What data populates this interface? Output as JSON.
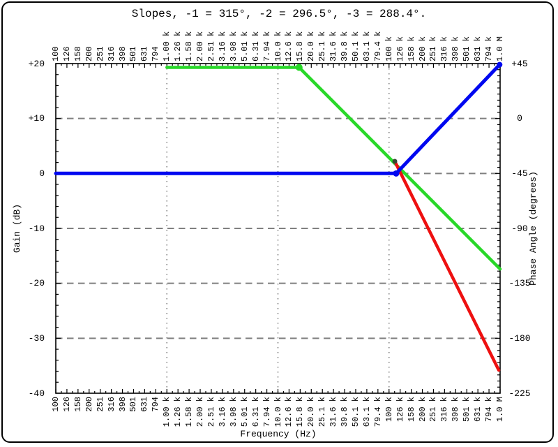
{
  "figure": {
    "background": "#ffffff",
    "border_color": "#000000"
  },
  "chart_data": {
    "type": "line",
    "title": "Slopes, -1 = 315°, -2 = 296.5°, -3 = 288.4°.",
    "xlabel": "Frequency (Hz)",
    "ylabel_left": "Gain (dB)",
    "ylabel_right": "Phase Angle (degrees)",
    "x_scale": "log",
    "x_range_hz": [
      100,
      1000000
    ],
    "y_left_range_db": [
      -40,
      20
    ],
    "y_right_range_deg": [
      -225,
      45
    ],
    "grid": {
      "v_dotted_lines_hz": [
        1000,
        10000,
        100000
      ],
      "h_dashed_lines_db": [
        10,
        0,
        -10,
        -20,
        -30
      ]
    },
    "x_tick_labels": [
      "100",
      "126",
      "158",
      "200",
      "251",
      "316",
      "398",
      "501",
      "631",
      "794",
      "1.00 k",
      "1.26 k",
      "1.58 k",
      "2.00 k",
      "2.51 k",
      "3.16 k",
      "3.98 k",
      "5.01 k",
      "6.31 k",
      "7.94 k",
      "10.0 k",
      "12.6 k",
      "15.8 k",
      "20.0 k",
      "25.1 k",
      "31.6 k",
      "39.8 k",
      "50.1 k",
      "63.1 k",
      "79.4 k",
      "100 k",
      "126 k",
      "158 k",
      "200 k",
      "251 k",
      "316 k",
      "398 k",
      "501 k",
      "631 k",
      "794 k",
      "1.0 M"
    ],
    "y_left_tick_labels": [
      "+20",
      "+10",
      "0",
      "-10",
      "-20",
      "-30",
      "-40"
    ],
    "y_left_tick_values": [
      20,
      10,
      0,
      -10,
      -20,
      -30,
      -40
    ],
    "y_left_minor_step_db": 2,
    "y_right_tick_labels": [
      "+45",
      "0",
      "-45",
      "-90",
      "-135",
      "-180",
      "-225"
    ],
    "y_right_tick_values": [
      45,
      0,
      -45,
      -90,
      -135,
      -180,
      -225
    ],
    "y_right_minor_step_deg": 5,
    "legend": "none",
    "series": [
      {
        "name": "green-slope-minus-1",
        "color": "#28d828",
        "width": 4.5,
        "points_hz_db": [
          [
            1000,
            19.3
          ],
          [
            15500,
            19.3
          ],
          [
            1000000,
            -17.4
          ]
        ]
      },
      {
        "name": "red-slope-minus-2",
        "color": "#ee1010",
        "width": 4.5,
        "points_hz_db": [
          [
            112700,
            2.2
          ],
          [
            973000,
            -35.8
          ]
        ]
      },
      {
        "name": "blue-unity-then-plus-1",
        "color": "#0008f0",
        "width": 5,
        "points_hz_db": [
          [
            100,
            0
          ],
          [
            115900,
            0
          ],
          [
            990000,
            19.8
          ]
        ]
      }
    ],
    "markers": [
      {
        "name": "green-corner-dot",
        "hz": 15500,
        "db": 19.3,
        "r": 5,
        "color": "#28d828"
      },
      {
        "name": "branch-dot",
        "hz": 112700,
        "db": 2.2,
        "r": 3.5,
        "color": "#3a4632"
      },
      {
        "name": "blue-corner-dot",
        "hz": 115900,
        "db": 0,
        "r": 4.5,
        "color": "#0008f0"
      },
      {
        "name": "blue-end-dot",
        "hz": 990000,
        "db": 19.8,
        "r": 4,
        "color": "#0008f0"
      }
    ],
    "grid_colors": {
      "dotted_vertical": "#777777",
      "dashed_horizontal": "#808080"
    }
  }
}
